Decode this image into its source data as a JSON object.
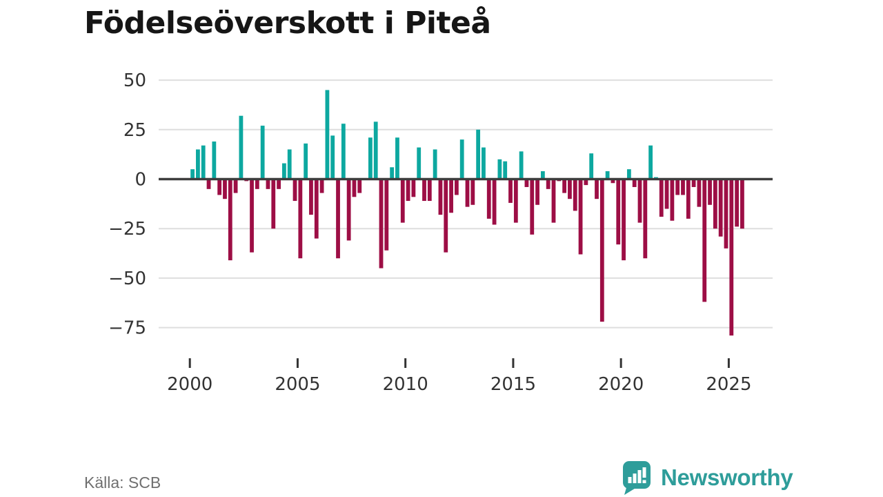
{
  "chart_data": {
    "type": "bar",
    "title": "Födelseöverskott i Piteå",
    "xlabel": "",
    "ylabel": "",
    "grid": "horizontal",
    "zero_line": true,
    "legend": "none",
    "ylim": [
      -84,
      55
    ],
    "y_ticks": [
      50,
      25,
      0,
      -25,
      -50,
      -75
    ],
    "y_tick_labels": [
      "50",
      "25",
      "0",
      "−25",
      "−50",
      "−75"
    ],
    "x_ticks": [
      2000,
      2005,
      2010,
      2015,
      2020,
      2025
    ],
    "x_tick_labels": [
      "2000",
      "2005",
      "2010",
      "2015",
      "2020",
      "2025"
    ],
    "frequency": "quarterly",
    "first_period": "2000-Q1",
    "last_period": "2025-Q3",
    "positive_color": "#0da8a0",
    "negative_color": "#9d0e45",
    "values_by_year": [
      {
        "year": 2000,
        "values": [
          5,
          15,
          17,
          -5
        ]
      },
      {
        "year": 2001,
        "values": [
          19,
          -8,
          -10,
          -41
        ]
      },
      {
        "year": 2002,
        "values": [
          -7,
          32,
          -1,
          -37
        ]
      },
      {
        "year": 2003,
        "values": [
          -5,
          27,
          -5,
          -25
        ]
      },
      {
        "year": 2004,
        "values": [
          -5,
          8,
          15,
          -11
        ]
      },
      {
        "year": 2005,
        "values": [
          -40,
          18,
          -18,
          -30
        ]
      },
      {
        "year": 2006,
        "values": [
          -7,
          45,
          22,
          -40
        ]
      },
      {
        "year": 2007,
        "values": [
          28,
          -31,
          -9,
          -7
        ]
      },
      {
        "year": 2008,
        "values": [
          0,
          21,
          29,
          -45
        ]
      },
      {
        "year": 2009,
        "values": [
          -36,
          6,
          21,
          -22
        ]
      },
      {
        "year": 2010,
        "values": [
          -11,
          -9,
          16,
          -11
        ]
      },
      {
        "year": 2011,
        "values": [
          -11,
          15,
          -18,
          -37
        ]
      },
      {
        "year": 2012,
        "values": [
          -17,
          -8,
          20,
          -14
        ]
      },
      {
        "year": 2013,
        "values": [
          -13,
          25,
          16,
          -20
        ]
      },
      {
        "year": 2014,
        "values": [
          -23,
          10,
          9,
          -12
        ]
      },
      {
        "year": 2015,
        "values": [
          -22,
          14,
          -4,
          -28
        ]
      },
      {
        "year": 2016,
        "values": [
          -13,
          4,
          -5,
          -22
        ]
      },
      {
        "year": 2017,
        "values": [
          -1,
          -7,
          -10,
          -16
        ]
      },
      {
        "year": 2018,
        "values": [
          -38,
          -3,
          13,
          -10
        ]
      },
      {
        "year": 2019,
        "values": [
          -72,
          4,
          -2,
          -33
        ]
      },
      {
        "year": 2020,
        "values": [
          -41,
          5,
          -4,
          -22
        ]
      },
      {
        "year": 2021,
        "values": [
          -40,
          17,
          1,
          -19
        ]
      },
      {
        "year": 2022,
        "values": [
          -15,
          -21,
          -8,
          -8
        ]
      },
      {
        "year": 2023,
        "values": [
          -20,
          -4,
          -14,
          -62
        ]
      },
      {
        "year": 2024,
        "values": [
          -13,
          -25,
          -29,
          -35
        ]
      },
      {
        "year": 2025,
        "values": [
          -79,
          -24,
          -25
        ]
      }
    ]
  },
  "source": {
    "text": "Källa: SCB"
  },
  "branding": {
    "name": "Newsworthy",
    "icon": "newsworthy-logo-icon"
  },
  "style": {
    "grid_color": "#dedede",
    "zero_line_color": "#3d3d3d",
    "axis_text_color": "#333333",
    "brand_color": "#2e9d9a"
  }
}
